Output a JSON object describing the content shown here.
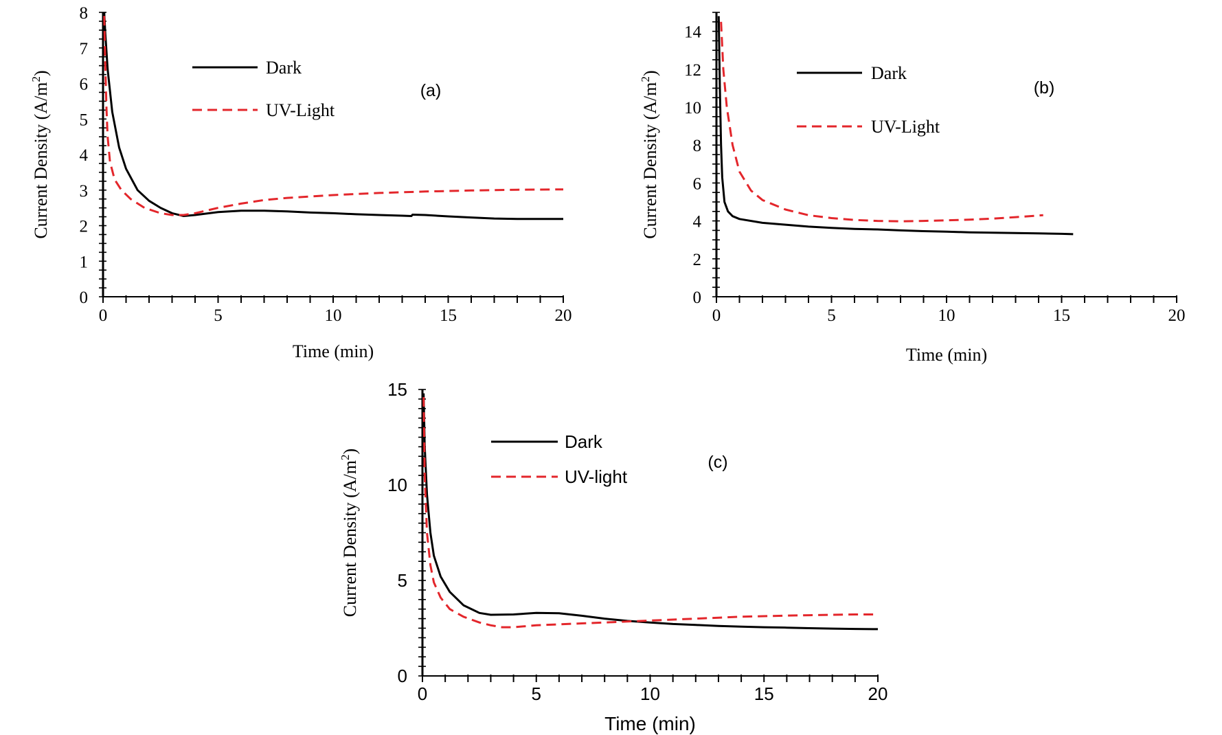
{
  "colors": {
    "dark": "#000000",
    "uv": "#e3262b",
    "axis": "#000000"
  },
  "chart_data": [
    {
      "id": "a",
      "type": "line",
      "panel_label": "(a)",
      "xlabel": "Time (min)",
      "ylabel": "Current Density (A/m2)",
      "xlim": [
        0,
        20
      ],
      "ylim": [
        0,
        8
      ],
      "xticks": [
        0,
        5,
        10,
        15,
        20
      ],
      "yticks": [
        0,
        1,
        2,
        3,
        4,
        5,
        6,
        7,
        8
      ],
      "grid": false,
      "legend_position": "top-left",
      "series": [
        {
          "name": "Dark",
          "style": "solid",
          "color": "#000000",
          "points": [
            [
              0.05,
              8.0
            ],
            [
              0.1,
              7.4
            ],
            [
              0.2,
              6.4
            ],
            [
              0.4,
              5.2
            ],
            [
              0.7,
              4.2
            ],
            [
              1.0,
              3.6
            ],
            [
              1.5,
              3.0
            ],
            [
              2.0,
              2.7
            ],
            [
              2.5,
              2.5
            ],
            [
              3.0,
              2.35
            ],
            [
              3.5,
              2.27
            ],
            [
              4.0,
              2.3
            ],
            [
              5.0,
              2.38
            ],
            [
              6.0,
              2.42
            ],
            [
              7.0,
              2.42
            ],
            [
              8.0,
              2.4
            ],
            [
              9.0,
              2.37
            ],
            [
              10.0,
              2.35
            ],
            [
              11.0,
              2.32
            ],
            [
              12.0,
              2.3
            ],
            [
              13.0,
              2.28
            ],
            [
              13.4,
              2.27
            ],
            [
              13.45,
              2.31
            ],
            [
              14.0,
              2.3
            ],
            [
              15.0,
              2.26
            ],
            [
              16.0,
              2.23
            ],
            [
              17.0,
              2.2
            ],
            [
              18.0,
              2.19
            ],
            [
              19.0,
              2.19
            ],
            [
              20.0,
              2.19
            ]
          ]
        },
        {
          "name": "UV-Light",
          "style": "dashed",
          "color": "#e3262b",
          "points": [
            [
              0.05,
              7.9
            ],
            [
              0.1,
              6.5
            ],
            [
              0.15,
              5.3
            ],
            [
              0.2,
              4.5
            ],
            [
              0.3,
              3.8
            ],
            [
              0.5,
              3.3
            ],
            [
              0.8,
              3.0
            ],
            [
              1.2,
              2.75
            ],
            [
              1.8,
              2.5
            ],
            [
              2.5,
              2.35
            ],
            [
              3.0,
              2.3
            ],
            [
              3.5,
              2.3
            ],
            [
              4.0,
              2.35
            ],
            [
              5.0,
              2.5
            ],
            [
              6.0,
              2.62
            ],
            [
              7.0,
              2.72
            ],
            [
              8.0,
              2.78
            ],
            [
              9.0,
              2.82
            ],
            [
              10.0,
              2.86
            ],
            [
              12.0,
              2.92
            ],
            [
              14.0,
              2.96
            ],
            [
              16.0,
              2.99
            ],
            [
              18.0,
              3.01
            ],
            [
              20.0,
              3.02
            ]
          ]
        }
      ]
    },
    {
      "id": "b",
      "type": "line",
      "panel_label": "(b)",
      "xlabel": "Time (min)",
      "ylabel": "Current Density (A/m2)",
      "xlim": [
        0,
        20
      ],
      "ylim": [
        0,
        15
      ],
      "xticks": [
        0,
        5,
        10,
        15,
        20
      ],
      "yticks": [
        0,
        2,
        4,
        6,
        8,
        10,
        12,
        14
      ],
      "grid": false,
      "legend_position": "top-left",
      "series": [
        {
          "name": "Dark",
          "style": "solid",
          "color": "#000000",
          "points": [
            [
              0.1,
              14.8
            ],
            [
              0.15,
              11.0
            ],
            [
              0.2,
              8.0
            ],
            [
              0.25,
              6.3
            ],
            [
              0.35,
              5.0
            ],
            [
              0.5,
              4.5
            ],
            [
              0.7,
              4.25
            ],
            [
              1.0,
              4.1
            ],
            [
              2.0,
              3.9
            ],
            [
              3.0,
              3.8
            ],
            [
              4.0,
              3.7
            ],
            [
              5.0,
              3.63
            ],
            [
              6.0,
              3.58
            ],
            [
              7.0,
              3.55
            ],
            [
              8.0,
              3.5
            ],
            [
              9.0,
              3.46
            ],
            [
              10.0,
              3.43
            ],
            [
              11.0,
              3.4
            ],
            [
              12.0,
              3.38
            ],
            [
              13.0,
              3.36
            ],
            [
              14.0,
              3.34
            ],
            [
              15.0,
              3.32
            ],
            [
              15.5,
              3.3
            ]
          ]
        },
        {
          "name": "UV-Light",
          "style": "dashed",
          "color": "#e3262b",
          "points": [
            [
              0.2,
              14.5
            ],
            [
              0.3,
              12.0
            ],
            [
              0.45,
              10.0
            ],
            [
              0.7,
              8.0
            ],
            [
              1.0,
              6.6
            ],
            [
              1.5,
              5.6
            ],
            [
              2.0,
              5.1
            ],
            [
              3.0,
              4.6
            ],
            [
              4.0,
              4.3
            ],
            [
              5.0,
              4.15
            ],
            [
              6.0,
              4.05
            ],
            [
              7.0,
              4.0
            ],
            [
              8.0,
              3.98
            ],
            [
              9.0,
              4.0
            ],
            [
              10.0,
              4.03
            ],
            [
              11.0,
              4.07
            ],
            [
              12.0,
              4.12
            ],
            [
              13.0,
              4.2
            ],
            [
              14.2,
              4.3
            ]
          ]
        }
      ]
    },
    {
      "id": "c",
      "type": "line",
      "panel_label": "(c)",
      "xlabel": "Time (min)",
      "ylabel": "Current Density (A/m2)",
      "xlim": [
        0,
        20
      ],
      "ylim": [
        0,
        15
      ],
      "xticks": [
        0,
        5,
        10,
        15,
        20
      ],
      "yticks": [
        0,
        5,
        10,
        15
      ],
      "grid": false,
      "legend_position": "top-left",
      "series": [
        {
          "name": "Dark",
          "style": "solid",
          "color": "#000000",
          "points": [
            [
              0.05,
              14.8
            ],
            [
              0.1,
              12.0
            ],
            [
              0.2,
              9.5
            ],
            [
              0.35,
              7.5
            ],
            [
              0.5,
              6.3
            ],
            [
              0.8,
              5.2
            ],
            [
              1.2,
              4.4
            ],
            [
              1.8,
              3.7
            ],
            [
              2.5,
              3.3
            ],
            [
              3.0,
              3.2
            ],
            [
              4.0,
              3.22
            ],
            [
              5.0,
              3.3
            ],
            [
              6.0,
              3.28
            ],
            [
              7.0,
              3.15
            ],
            [
              8.0,
              3.0
            ],
            [
              9.0,
              2.88
            ],
            [
              10.0,
              2.8
            ],
            [
              11.0,
              2.72
            ],
            [
              12.0,
              2.67
            ],
            [
              13.0,
              2.62
            ],
            [
              14.0,
              2.58
            ],
            [
              15.0,
              2.55
            ],
            [
              16.0,
              2.53
            ],
            [
              17.0,
              2.5
            ],
            [
              18.0,
              2.48
            ],
            [
              19.0,
              2.46
            ],
            [
              20.0,
              2.45
            ]
          ]
        },
        {
          "name": "UV-light",
          "style": "dashed",
          "color": "#e3262b",
          "points": [
            [
              0.05,
              14.6
            ],
            [
              0.1,
              10.5
            ],
            [
              0.2,
              7.5
            ],
            [
              0.35,
              5.8
            ],
            [
              0.5,
              4.9
            ],
            [
              0.8,
              4.1
            ],
            [
              1.2,
              3.5
            ],
            [
              1.8,
              3.1
            ],
            [
              2.5,
              2.8
            ],
            [
              3.0,
              2.65
            ],
            [
              3.5,
              2.55
            ],
            [
              4.0,
              2.55
            ],
            [
              5.0,
              2.65
            ],
            [
              6.0,
              2.7
            ],
            [
              7.0,
              2.75
            ],
            [
              8.0,
              2.8
            ],
            [
              9.0,
              2.85
            ],
            [
              10.0,
              2.9
            ],
            [
              11.0,
              2.95
            ],
            [
              12.0,
              3.0
            ],
            [
              13.0,
              3.05
            ],
            [
              14.0,
              3.1
            ],
            [
              15.0,
              3.13
            ],
            [
              16.0,
              3.16
            ],
            [
              17.0,
              3.18
            ],
            [
              18.0,
              3.2
            ],
            [
              19.0,
              3.22
            ],
            [
              20.0,
              3.22
            ]
          ]
        }
      ]
    }
  ]
}
